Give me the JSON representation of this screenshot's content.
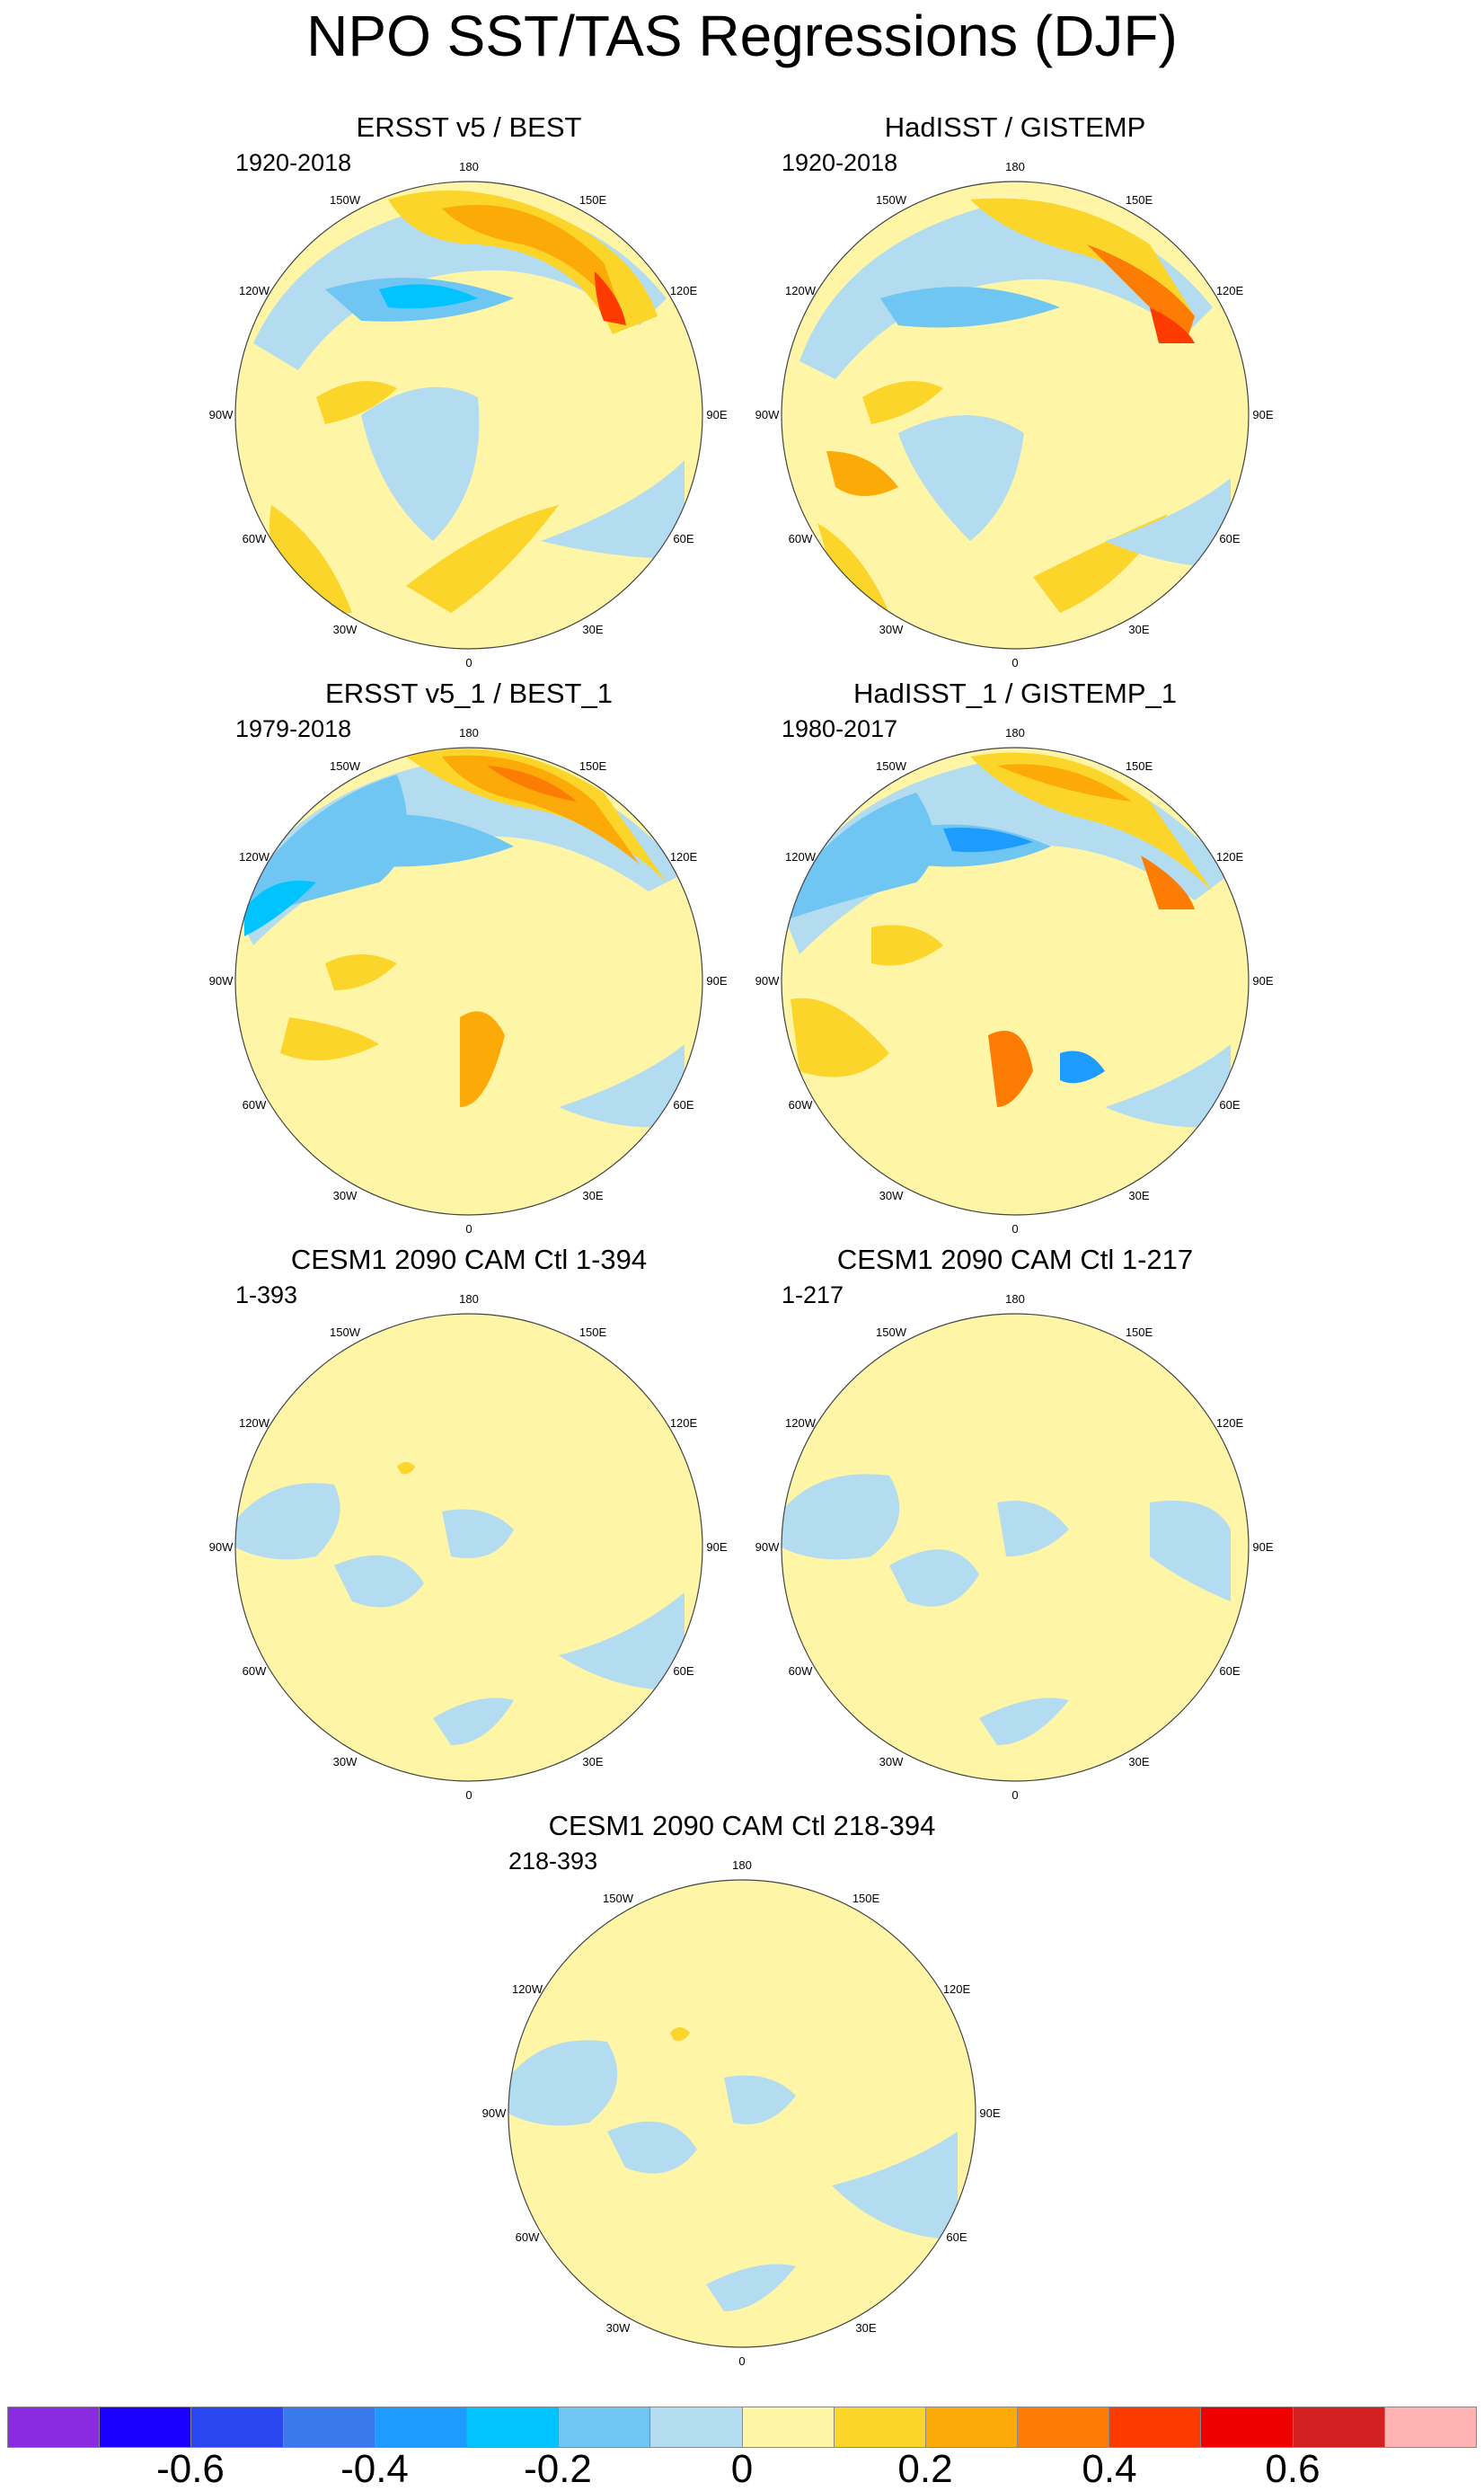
{
  "title": "NPO SST/TAS Regressions (DJF)",
  "lon_labels": [
    "180",
    "150E",
    "120E",
    "90E",
    "60E",
    "30E",
    "0",
    "30W",
    "60W",
    "90W",
    "120W",
    "150W"
  ],
  "panels": [
    {
      "title": "ERSST v5 / BEST",
      "period": "1920-2018"
    },
    {
      "title": "HadISST / GISTEMP",
      "period": "1920-2018"
    },
    {
      "title": "ERSST v5_1 / BEST_1",
      "period": "1979-2018"
    },
    {
      "title": "HadISST_1 / GISTEMP_1",
      "period": "1980-2017"
    },
    {
      "title": "CESM1 2090 CAM Ctl 1-394",
      "period": "1-393"
    },
    {
      "title": "CESM1 2090 CAM Ctl 1-217",
      "period": "1-217"
    },
    {
      "title": "CESM1 2090 CAM Ctl 218-394",
      "period": "218-393"
    }
  ],
  "colorbar": {
    "colors": [
      "#8a2be2",
      "#1a00ff",
      "#2a46f0",
      "#3a78ee",
      "#1e9bff",
      "#00c3ff",
      "#6fc6f2",
      "#b3dcf0",
      "#fef6a6",
      "#fcd52a",
      "#fcaa08",
      "#fd7c03",
      "#fd3a00",
      "#ee0000",
      "#d42020",
      "#ffb3b3"
    ],
    "labels": [
      "-0.6",
      "-0.4",
      "-0.2",
      "0",
      "0.2",
      "0.4",
      "0.6"
    ]
  }
}
